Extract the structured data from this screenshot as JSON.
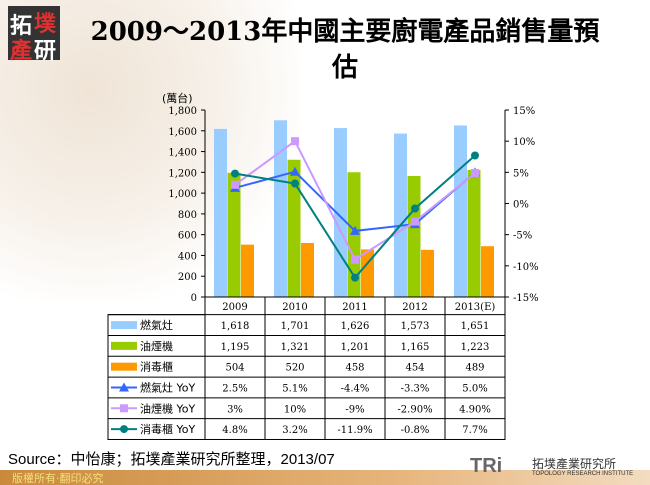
{
  "logo_text": [
    "拓",
    "墣",
    "產",
    "研"
  ],
  "chart_data": {
    "type": "bar",
    "title": "2009～2013年中國主要廚電產品銷售量預估",
    "ylabel": "(萬台)",
    "ylim": [
      0,
      1800
    ],
    "y_ticks": [
      "0",
      "200",
      "400",
      "600",
      "800",
      "1,000",
      "1,200",
      "1,400",
      "1,600",
      "1,800"
    ],
    "y2lim": [
      -15,
      15
    ],
    "y2_ticks": [
      "-15%",
      "-10%",
      "-5%",
      "0%",
      "5%",
      "10%",
      "15%"
    ],
    "categories": [
      "2009",
      "2010",
      "2011",
      "2012",
      "2013(E)"
    ],
    "grid": false,
    "legend": "data table",
    "series": [
      {
        "name": "燃氣灶",
        "kind": "bar",
        "color": "#99ccff",
        "values": [
          1618,
          1701,
          1626,
          1573,
          1651
        ],
        "labels": [
          "1,618",
          "1,701",
          "1,626",
          "1,573",
          "1,651"
        ]
      },
      {
        "name": "油煙機",
        "kind": "bar",
        "color": "#99cc00",
        "values": [
          1195,
          1321,
          1201,
          1165,
          1223
        ],
        "labels": [
          "1,195",
          "1,321",
          "1,201",
          "1,165",
          "1,223"
        ]
      },
      {
        "name": "消毒櫃",
        "kind": "bar",
        "color": "#ff9900",
        "values": [
          504,
          520,
          458,
          454,
          489
        ],
        "labels": [
          "504",
          "520",
          "458",
          "454",
          "489"
        ]
      },
      {
        "name": "燃氣灶 YoY",
        "kind": "line",
        "color": "#3366ff",
        "marker": "triangle",
        "values": [
          2.5,
          5.1,
          -4.4,
          -3.3,
          5.0
        ],
        "labels": [
          "2.5%",
          "5.1%",
          "-4.4%",
          "-3.3%",
          "5.0%"
        ]
      },
      {
        "name": "油煙機 YoY",
        "kind": "line",
        "color": "#cc99ff",
        "marker": "square",
        "values": [
          3,
          10,
          -9,
          -2.9,
          4.9
        ],
        "labels": [
          "3%",
          "10%",
          "-9%",
          "-2.90%",
          "4.90%"
        ]
      },
      {
        "name": "消毒櫃 YoY",
        "kind": "line",
        "color": "#008080",
        "marker": "circle",
        "values": [
          4.8,
          3.2,
          -11.9,
          -0.8,
          7.7
        ],
        "labels": [
          "4.8%",
          "3.2%",
          "-11.9%",
          "-0.8%",
          "7.7%"
        ]
      }
    ]
  },
  "source": "Source：中怡康；拓墣產業研究所整理，2013/07",
  "copyright": "版權所有‧翻印必究",
  "brand": {
    "mark": "TRi",
    "name_cn": "拓墣產業研究所",
    "name_en": "TOPOLOGY RESEARCH INSTITUTE"
  }
}
